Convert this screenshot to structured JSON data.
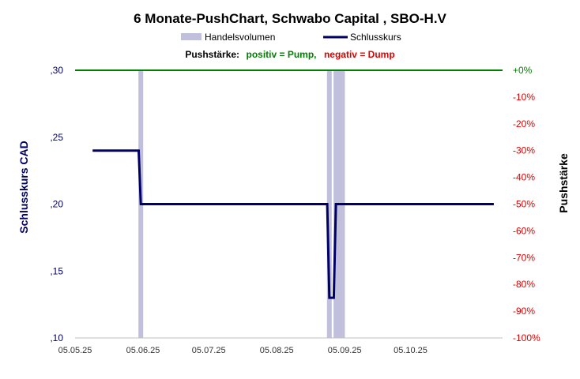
{
  "chart_data": {
    "type": "line",
    "title": "6 Monate-PushChart,  Schwabo Capital , SBO-H.V",
    "legend": {
      "placement": "top-center",
      "items": [
        {
          "name": "Handelsvolumen",
          "color": "#c0c0dc",
          "kind": "bar"
        },
        {
          "name": "Schlusskurs",
          "color": "#000066",
          "kind": "line"
        }
      ]
    },
    "pushstaerke": {
      "label": "Pushstärke:",
      "positive": "positiv = Pump,",
      "negative": "negativ = Dump",
      "positive_color": "#008000",
      "negative_color": "#e00000"
    },
    "ylabel_left": "Schlusskurs CAD",
    "ylabel_right": "Pushstärke",
    "ylim_left": [
      0.1,
      0.3
    ],
    "yticks_left": [
      {
        "value": 0.3,
        "label": ",30"
      },
      {
        "value": 0.25,
        "label": ",25"
      },
      {
        "value": 0.2,
        "label": ",20"
      },
      {
        "value": 0.15,
        "label": ",15"
      },
      {
        "value": 0.1,
        "label": ",10"
      }
    ],
    "ylim_right": [
      -100,
      0
    ],
    "yticks_right": [
      "+0%",
      "-10%",
      "-20%",
      "-30%",
      "-40%",
      "-50%",
      "-60%",
      "-70%",
      "-80%",
      "-90%",
      "-100%"
    ],
    "xticks": [
      "05.05.25",
      "05.06.25",
      "05.07.25",
      "05.08.25",
      "05.09.25",
      "05.10.25"
    ],
    "xrange": [
      "2025-05-05",
      "2025-11-16"
    ],
    "zero_line_color": "#008000",
    "series": [
      {
        "name": "Schlusskurs",
        "color": "#000066",
        "points": [
          {
            "x": "2025-05-13",
            "y": 0.24
          },
          {
            "x": "2025-06-03",
            "y": 0.24
          },
          {
            "x": "2025-06-04",
            "y": 0.2
          },
          {
            "x": "2025-08-28",
            "y": 0.2
          },
          {
            "x": "2025-08-29",
            "y": 0.13
          },
          {
            "x": "2025-08-31",
            "y": 0.13
          },
          {
            "x": "2025-09-01",
            "y": 0.2
          },
          {
            "x": "2025-11-12",
            "y": 0.2
          }
        ]
      },
      {
        "name": "Handelsvolumen",
        "color": "#c0c0dc",
        "bars": [
          {
            "x": "2025-06-04",
            "y": 0
          },
          {
            "x": "2025-08-29",
            "y": 0
          },
          {
            "x": "2025-09-01",
            "y": 0
          },
          {
            "x": "2025-09-02",
            "y": 0
          },
          {
            "x": "2025-09-03",
            "y": 0
          },
          {
            "x": "2025-09-04",
            "y": 0
          }
        ]
      }
    ]
  }
}
